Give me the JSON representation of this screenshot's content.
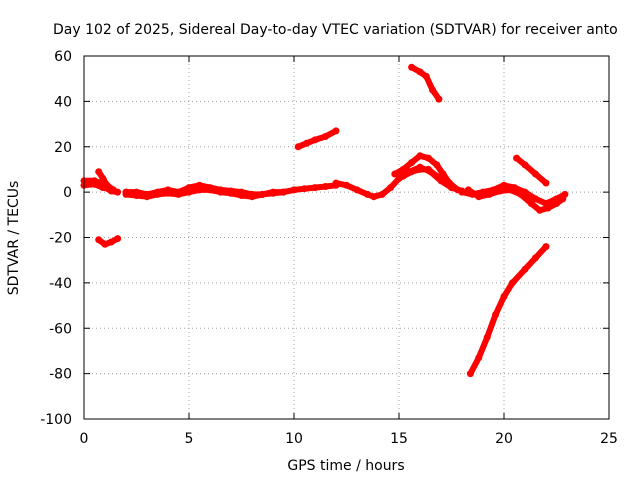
{
  "chart_data": {
    "type": "scatter",
    "title": "Day 102 of 2025, Sidereal Day-to-day VTEC variation (SDTVAR) for receiver anto",
    "xlabel": "GPS time / hours",
    "ylabel": "SDTVAR / TECUs",
    "xlim": [
      0,
      25
    ],
    "ylim": [
      -100,
      60
    ],
    "xticks": [
      "0",
      "5",
      "10",
      "15",
      "20",
      "25"
    ],
    "yticks": [
      "60",
      "40",
      "20",
      "0",
      "-20",
      "-40",
      "-60",
      "-80",
      "-100"
    ],
    "grid": true,
    "colors": {
      "series": "#ff0000",
      "grid": "#a0a0a0",
      "frame": "#000000"
    },
    "series": [
      {
        "segments": [
          [
            [
              0.0,
              5
            ],
            [
              0.5,
              5
            ],
            [
              0.8,
              4
            ],
            [
              1.0,
              2
            ],
            [
              1.3,
              0.5
            ],
            [
              1.6,
              0
            ]
          ],
          [
            [
              0.7,
              9
            ],
            [
              0.9,
              6
            ],
            [
              1.1,
              3
            ],
            [
              1.4,
              1
            ]
          ],
          [
            [
              0.0,
              3
            ],
            [
              0.5,
              3.5
            ],
            [
              0.9,
              2
            ]
          ],
          [
            [
              0.7,
              -21
            ],
            [
              1.0,
              -23
            ],
            [
              1.3,
              -22
            ],
            [
              1.6,
              -20.5
            ]
          ],
          [
            [
              2.0,
              0
            ],
            [
              2.5,
              0
            ],
            [
              3.0,
              -1
            ],
            [
              3.5,
              0
            ],
            [
              4.0,
              1
            ],
            [
              4.5,
              0
            ],
            [
              5.0,
              2
            ],
            [
              5.5,
              3
            ],
            [
              6.0,
              2
            ],
            [
              6.5,
              1
            ],
            [
              7.0,
              0.5
            ],
            [
              7.5,
              0
            ],
            [
              8.0,
              -1
            ],
            [
              8.5,
              -1
            ],
            [
              9.0,
              0
            ],
            [
              9.5,
              0
            ],
            [
              10.0,
              1
            ],
            [
              10.5,
              1.5
            ],
            [
              11.0,
              2
            ],
            [
              11.5,
              2.5
            ],
            [
              12.0,
              3
            ]
          ],
          [
            [
              2.0,
              -1
            ],
            [
              2.5,
              -1.5
            ],
            [
              3.0,
              -2
            ],
            [
              3.5,
              -1
            ],
            [
              4.0,
              -0.5
            ],
            [
              4.5,
              -1
            ],
            [
              5.0,
              0
            ],
            [
              5.5,
              1
            ],
            [
              6.0,
              1
            ],
            [
              6.5,
              0
            ],
            [
              7.0,
              -0.5
            ],
            [
              7.5,
              -1.5
            ],
            [
              8.0,
              -2
            ],
            [
              8.5,
              -1
            ],
            [
              9.0,
              -0.5
            ],
            [
              9.5,
              0
            ]
          ],
          [
            [
              12.0,
              4
            ],
            [
              12.5,
              3
            ],
            [
              13.0,
              1
            ],
            [
              13.5,
              -1
            ],
            [
              13.8,
              -2
            ],
            [
              14.2,
              -1
            ],
            [
              14.6,
              2
            ],
            [
              15.0,
              6
            ],
            [
              15.5,
              9
            ],
            [
              16.0,
              11
            ],
            [
              16.5,
              9
            ],
            [
              17.0,
              5
            ],
            [
              17.5,
              2
            ],
            [
              18.0,
              0.5
            ]
          ],
          [
            [
              14.8,
              8
            ],
            [
              15.2,
              10
            ],
            [
              15.6,
              13
            ],
            [
              16.0,
              16
            ],
            [
              16.4,
              15
            ],
            [
              16.8,
              12
            ],
            [
              17.1,
              8
            ],
            [
              17.4,
              4
            ],
            [
              17.8,
              1
            ]
          ],
          [
            [
              15.2,
              7
            ],
            [
              15.6,
              9
            ],
            [
              16.0,
              10
            ],
            [
              16.4,
              10
            ],
            [
              16.8,
              7
            ],
            [
              17.2,
              4
            ],
            [
              17.6,
              2
            ]
          ],
          [
            [
              18.0,
              0
            ],
            [
              18.5,
              -1
            ],
            [
              19.0,
              0
            ],
            [
              19.5,
              1
            ],
            [
              20.0,
              3
            ],
            [
              20.5,
              2
            ],
            [
              21.0,
              0
            ],
            [
              21.5,
              -3
            ],
            [
              22.0,
              -5
            ],
            [
              22.5,
              -3
            ],
            [
              22.9,
              -1
            ]
          ],
          [
            [
              18.3,
              1
            ],
            [
              18.8,
              -2
            ],
            [
              19.3,
              -1
            ],
            [
              19.8,
              0.5
            ],
            [
              20.3,
              1
            ],
            [
              20.8,
              -1
            ],
            [
              21.3,
              -5
            ],
            [
              21.7,
              -8
            ],
            [
              22.1,
              -7
            ],
            [
              22.5,
              -5
            ],
            [
              22.8,
              -3
            ]
          ],
          [
            [
              10.2,
              20
            ],
            [
              10.6,
              21.5
            ],
            [
              11.0,
              23
            ],
            [
              11.5,
              24.5
            ],
            [
              12.0,
              27
            ]
          ],
          [
            [
              15.6,
              55
            ],
            [
              16.0,
              53
            ],
            [
              16.3,
              51
            ],
            [
              16.6,
              45
            ],
            [
              16.9,
              41
            ]
          ],
          [
            [
              20.6,
              15
            ],
            [
              21.0,
              12
            ],
            [
              21.5,
              8
            ],
            [
              22.0,
              4
            ]
          ],
          [
            [
              18.4,
              -80
            ],
            [
              18.8,
              -73
            ],
            [
              19.2,
              -64
            ],
            [
              19.6,
              -54
            ],
            [
              20.0,
              -46
            ],
            [
              20.4,
              -40
            ],
            [
              21.0,
              -34
            ],
            [
              21.5,
              -29
            ],
            [
              22.0,
              -24
            ]
          ]
        ]
      }
    ]
  }
}
